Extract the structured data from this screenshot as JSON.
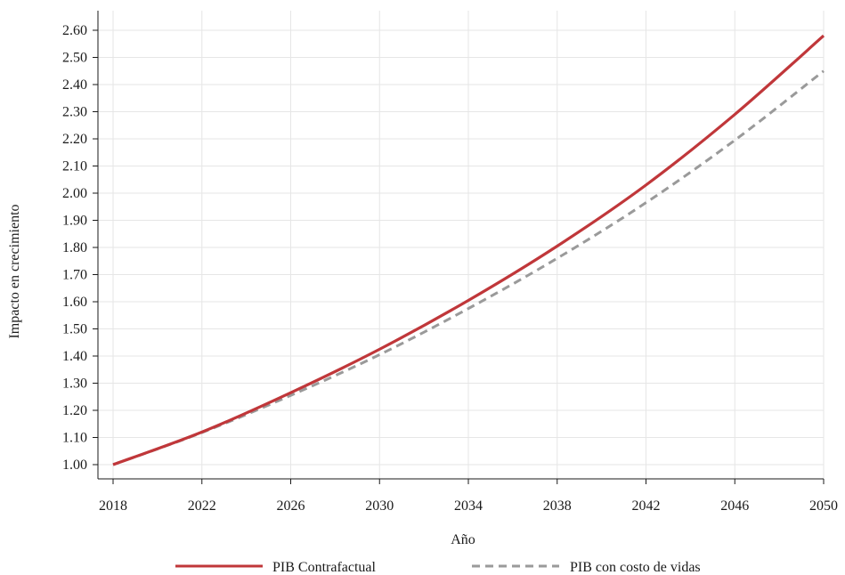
{
  "chart_data": {
    "type": "line",
    "title": "",
    "xlabel": "Año",
    "ylabel": "Impacto en crecimiento",
    "xlim": [
      2018,
      2050
    ],
    "ylim": [
      1.0,
      2.6
    ],
    "xticks": [
      "2018",
      "2022",
      "2026",
      "2030",
      "2034",
      "2038",
      "2042",
      "2046",
      "2050"
    ],
    "yticks": [
      "1.00",
      "1.10",
      "1.20",
      "1.30",
      "1.40",
      "1.50",
      "1.60",
      "1.70",
      "1.80",
      "1.90",
      "2.00",
      "2.10",
      "2.20",
      "2.30",
      "2.40",
      "2.50",
      "2.60"
    ],
    "grid": true,
    "legend_position": "bottom",
    "x": [
      2018,
      2022,
      2026,
      2030,
      2034,
      2038,
      2042,
      2046,
      2050
    ],
    "series": [
      {
        "name": "PIB Contrafactual",
        "color": "#c0373a",
        "style": "solid",
        "values": [
          1.0,
          1.12,
          1.265,
          1.425,
          1.605,
          1.805,
          2.03,
          2.29,
          2.58
        ]
      },
      {
        "name": "PIB con costo de vidas",
        "color": "#9a9a9a",
        "style": "dashed",
        "values": [
          1.0,
          1.118,
          1.255,
          1.405,
          1.575,
          1.76,
          1.965,
          2.195,
          2.45
        ]
      }
    ]
  }
}
